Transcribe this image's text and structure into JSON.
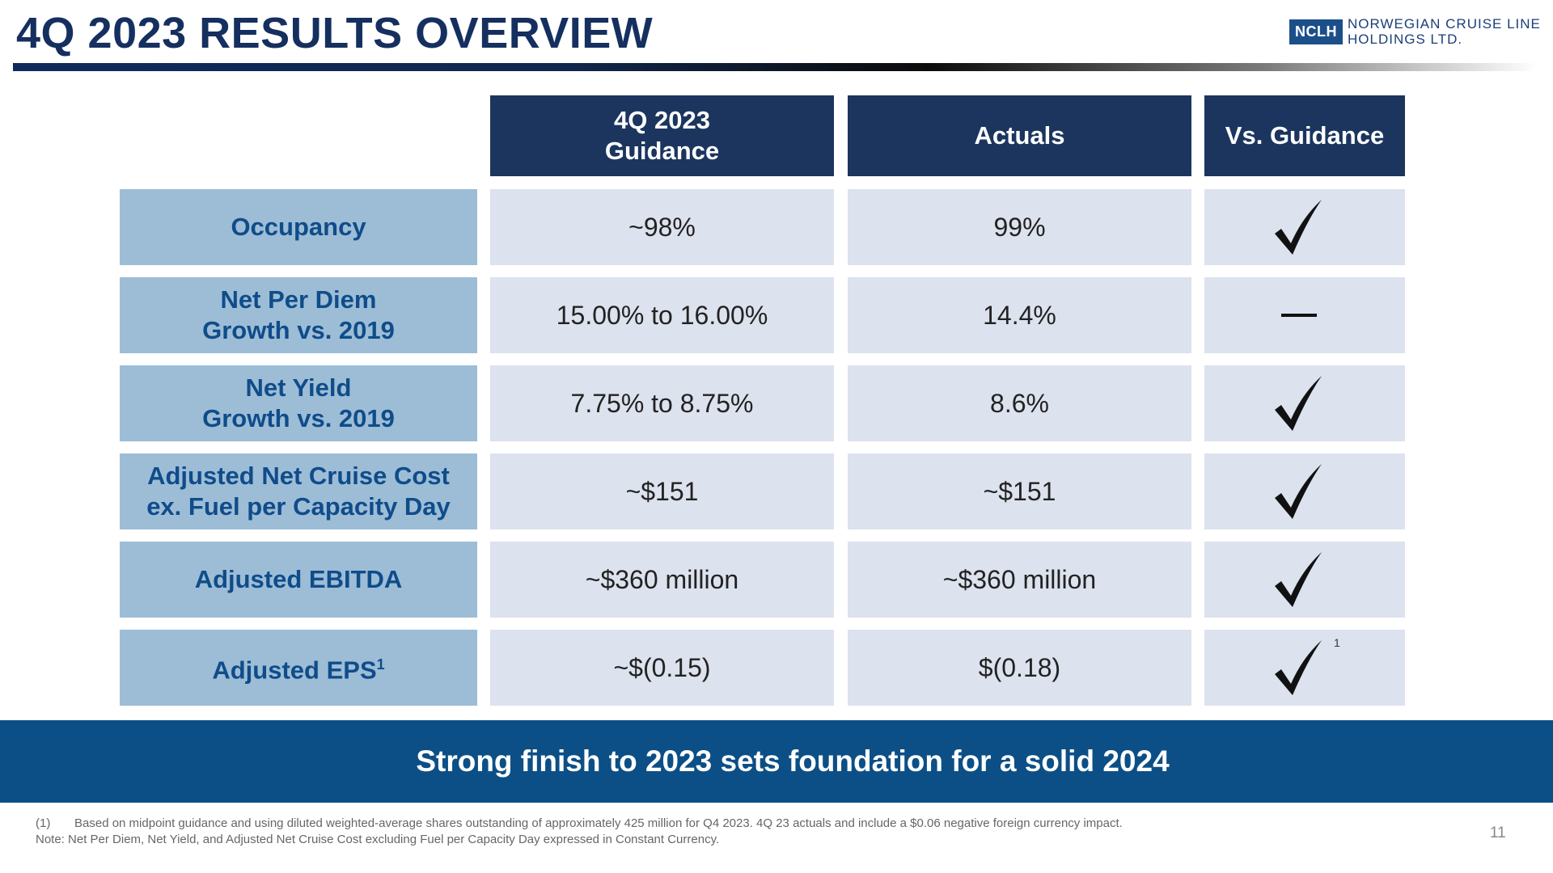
{
  "title": "4Q 2023 RESULTS OVERVIEW",
  "logo": {
    "abbr": "NCLH",
    "line1": "NORWEGIAN CRUISE LINE",
    "line2": "HOLDINGS LTD."
  },
  "table": {
    "headers": [
      {
        "line1": "4Q 2023",
        "line2": "Guidance"
      },
      {
        "line1": "Actuals",
        "line2": ""
      },
      {
        "line1": "Vs. Guidance",
        "line2": ""
      }
    ],
    "rows": [
      {
        "label1": "Occupancy",
        "label2": "",
        "label_sup": "",
        "guidance": "~98%",
        "actual": "99%",
        "status": "check",
        "status_sup": ""
      },
      {
        "label1": "Net Per Diem",
        "label2": "Growth vs. 2019",
        "label_sup": "",
        "guidance": "15.00% to 16.00%",
        "actual": "14.4%",
        "status": "dash",
        "status_sup": ""
      },
      {
        "label1": "Net Yield",
        "label2": "Growth vs. 2019",
        "label_sup": "",
        "guidance": "7.75% to 8.75%",
        "actual": "8.6%",
        "status": "check",
        "status_sup": ""
      },
      {
        "label1": "Adjusted Net Cruise Cost",
        "label2": "ex. Fuel per Capacity Day",
        "label_sup": "",
        "guidance": "~$151",
        "actual": "~$151",
        "status": "check",
        "status_sup": ""
      },
      {
        "label1": "Adjusted EBITDA",
        "label2": "",
        "label_sup": "",
        "guidance": "~$360 million",
        "actual": "~$360 million",
        "status": "check",
        "status_sup": ""
      },
      {
        "label1": "Adjusted EPS",
        "label2": "",
        "label_sup": "1",
        "guidance": "~$(0.15)",
        "actual": "$(0.18)",
        "status": "check",
        "status_sup": "1"
      }
    ]
  },
  "banner": "Strong finish to 2023 sets foundation for a solid 2024",
  "footnotes": {
    "num": "(1)",
    "line1": "Based on midpoint guidance and using diluted weighted-average shares outstanding of approximately 425 million for Q4 2023. 4Q 23 actuals and include a $0.06 negative foreign currency impact.",
    "line2": "Note: Net Per Diem, Net Yield, and Adjusted Net Cruise Cost excluding Fuel per Capacity Day expressed in Constant Currency."
  },
  "page_number": "11",
  "colors": {
    "header_bg": "#1b355f",
    "label_bg": "#9dbdd6",
    "value_bg": "#dce2ee",
    "banner_bg": "#0c4f86"
  }
}
